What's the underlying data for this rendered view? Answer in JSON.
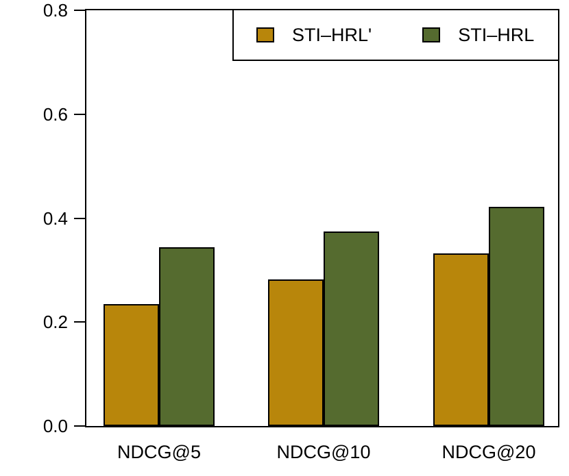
{
  "chart_data": {
    "type": "bar",
    "title": "",
    "xlabel": "",
    "ylabel": "",
    "categories": [
      "NDCG@5",
      "NDCG@10",
      "NDCG@20"
    ],
    "series": [
      {
        "name": "STI–HRL'",
        "color": "#B8860B",
        "values": [
          0.235,
          0.282,
          0.332
        ]
      },
      {
        "name": "STI–HRL",
        "color": "#556B2F",
        "values": [
          0.344,
          0.374,
          0.422
        ]
      }
    ],
    "ylim": [
      0.0,
      0.8
    ],
    "yticks": [
      0.0,
      0.2,
      0.4,
      0.6,
      0.8
    ],
    "ytick_labels": [
      "0.0",
      "0.2",
      "0.4",
      "0.6",
      "0.8"
    ],
    "grid": false,
    "legend_position": "top-right",
    "bar_border_color": "#000000",
    "axis_color": "#000000",
    "background": "#FFFFFF"
  }
}
